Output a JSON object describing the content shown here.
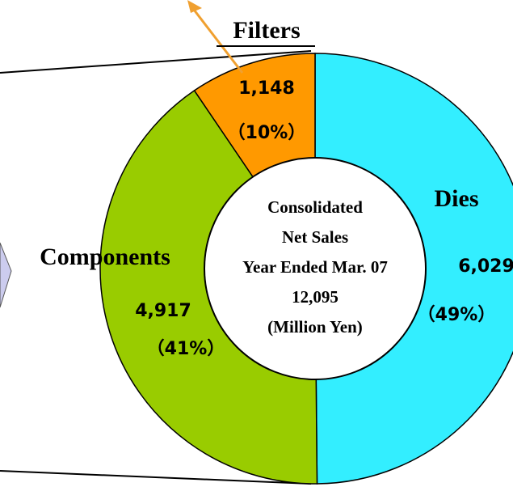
{
  "chart_data": {
    "type": "donut",
    "categories": [
      "Dies",
      "Components",
      "Filters"
    ],
    "values": [
      6029,
      4917,
      1148
    ],
    "value_labels": [
      "6,029",
      "4,917",
      "1,148"
    ],
    "percent_labels": [
      "（49%）",
      "（41%）",
      "（10%）"
    ],
    "colors": [
      "#33eeff",
      "#99cc00",
      "#ff9900"
    ],
    "center_text": [
      "Consolidated",
      "Net Sales",
      "Year Ended Mar. 07",
      "12,095",
      "(Million Yen)"
    ]
  }
}
